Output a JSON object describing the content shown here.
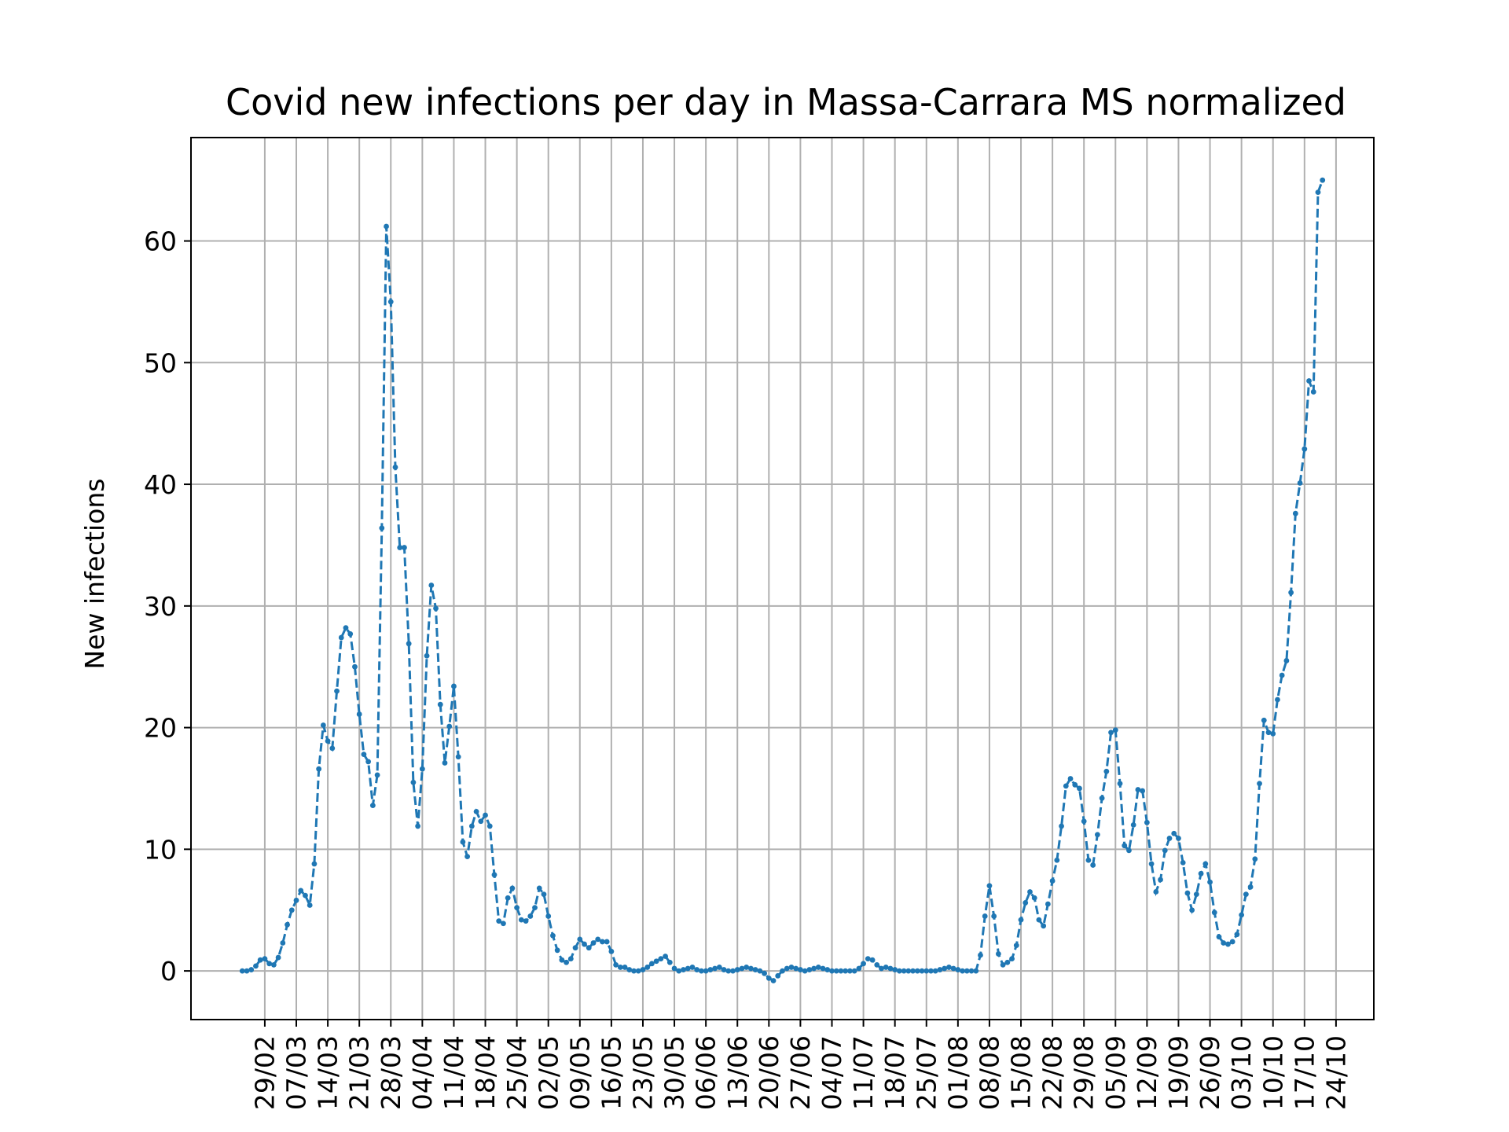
{
  "chart_data": {
    "type": "line",
    "title": "Covid new infections per day in Massa-Carrara MS normalized",
    "xlabel": "",
    "ylabel": "New infections",
    "ylim": [
      -4,
      68.5
    ],
    "yticks": [
      0,
      10,
      20,
      30,
      40,
      50,
      60
    ],
    "grid": true,
    "line_style": "dashed",
    "marker": "dot",
    "start_date": "24/02",
    "end_date": "24/10",
    "xticks": [
      {
        "day": 5,
        "label": "29/02"
      },
      {
        "day": 12,
        "label": "07/03"
      },
      {
        "day": 19,
        "label": "14/03"
      },
      {
        "day": 26,
        "label": "21/03"
      },
      {
        "day": 33,
        "label": "28/03"
      },
      {
        "day": 40,
        "label": "04/04"
      },
      {
        "day": 47,
        "label": "11/04"
      },
      {
        "day": 54,
        "label": "18/04"
      },
      {
        "day": 61,
        "label": "25/04"
      },
      {
        "day": 68,
        "label": "02/05"
      },
      {
        "day": 75,
        "label": "09/05"
      },
      {
        "day": 82,
        "label": "16/05"
      },
      {
        "day": 89,
        "label": "23/05"
      },
      {
        "day": 96,
        "label": "30/05"
      },
      {
        "day": 103,
        "label": "06/06"
      },
      {
        "day": 110,
        "label": "13/06"
      },
      {
        "day": 117,
        "label": "20/06"
      },
      {
        "day": 124,
        "label": "27/06"
      },
      {
        "day": 131,
        "label": "04/07"
      },
      {
        "day": 138,
        "label": "11/07"
      },
      {
        "day": 145,
        "label": "18/07"
      },
      {
        "day": 152,
        "label": "25/07"
      },
      {
        "day": 159,
        "label": "01/08"
      },
      {
        "day": 166,
        "label": "08/08"
      },
      {
        "day": 173,
        "label": "15/08"
      },
      {
        "day": 180,
        "label": "22/08"
      },
      {
        "day": 187,
        "label": "29/08"
      },
      {
        "day": 194,
        "label": "05/09"
      },
      {
        "day": 201,
        "label": "12/09"
      },
      {
        "day": 208,
        "label": "19/09"
      },
      {
        "day": 215,
        "label": "26/09"
      },
      {
        "day": 222,
        "label": "03/10"
      },
      {
        "day": 229,
        "label": "10/10"
      },
      {
        "day": 236,
        "label": "17/10"
      },
      {
        "day": 243,
        "label": "24/10"
      }
    ],
    "series": [
      {
        "name": "New infections",
        "color": "#1f77b4",
        "values": [
          0,
          0,
          0.1,
          0.4,
          0.9,
          1.0,
          0.6,
          0.5,
          1.1,
          2.3,
          3.8,
          5.0,
          5.8,
          6.6,
          6.2,
          5.4,
          8.8,
          16.6,
          20.2,
          18.9,
          18.3,
          23.0,
          27.4,
          28.2,
          27.7,
          25.0,
          21.1,
          17.8,
          17.2,
          13.6,
          16.1,
          36.4,
          61.2,
          55.0,
          41.4,
          34.8,
          34.8,
          26.9,
          15.5,
          11.9,
          16.6,
          25.9,
          31.7,
          29.8,
          21.9,
          17.1,
          20.1,
          23.4,
          17.6,
          10.6,
          9.4,
          11.9,
          13.1,
          12.3,
          12.8,
          11.9,
          7.9,
          4.1,
          3.9,
          6.0,
          6.8,
          5.2,
          4.2,
          4.1,
          4.5,
          5.2,
          6.8,
          6.3,
          4.5,
          2.9,
          1.7,
          0.9,
          0.7,
          1.0,
          1.9,
          2.6,
          2.2,
          1.9,
          2.3,
          2.6,
          2.4,
          2.4,
          1.6,
          0.5,
          0.3,
          0.3,
          0.1,
          0,
          0,
          0.1,
          0.3,
          0.6,
          0.8,
          1.0,
          1.2,
          0.7,
          0.2,
          0,
          0.1,
          0.2,
          0.3,
          0.1,
          0,
          0,
          0.1,
          0.2,
          0.3,
          0.1,
          0,
          0,
          0.1,
          0.2,
          0.3,
          0.2,
          0.1,
          0,
          -0.2,
          -0.6,
          -0.8,
          -0.4,
          0,
          0.2,
          0.3,
          0.2,
          0.1,
          0,
          0.1,
          0.2,
          0.3,
          0.2,
          0.1,
          0,
          0,
          0,
          0,
          0,
          0,
          0.2,
          0.6,
          1.0,
          0.9,
          0.5,
          0.2,
          0.3,
          0.2,
          0.1,
          0,
          0,
          0,
          0,
          0,
          0,
          0,
          0,
          0,
          0.1,
          0.2,
          0.3,
          0.2,
          0.1,
          0,
          0,
          0,
          0,
          1.3,
          4.5,
          7.0,
          4.5,
          1.4,
          0.5,
          0.7,
          1.0,
          2.1,
          4.2,
          5.6,
          6.5,
          6.0,
          4.2,
          3.7,
          5.5,
          7.4,
          9.1,
          11.9,
          15.2,
          15.8,
          15.3,
          15.0,
          12.3,
          9.1,
          8.7,
          11.2,
          14.2,
          16.4,
          19.6,
          19.8,
          15.4,
          10.3,
          9.9,
          12.0,
          14.9,
          14.8,
          12.2,
          8.8,
          6.5,
          7.5,
          9.9,
          10.9,
          11.3,
          10.9,
          8.9,
          6.4,
          5.0,
          6.3,
          8.0,
          8.8,
          7.3,
          4.8,
          2.8,
          2.3,
          2.2,
          2.4,
          3.0,
          4.6,
          6.3,
          6.9,
          9.2,
          15.4,
          20.6,
          19.6,
          19.5,
          22.3,
          24.3,
          25.5,
          31.1,
          37.6,
          40.1,
          42.9,
          48.5,
          47.6,
          64.0,
          65.0
        ]
      }
    ]
  }
}
